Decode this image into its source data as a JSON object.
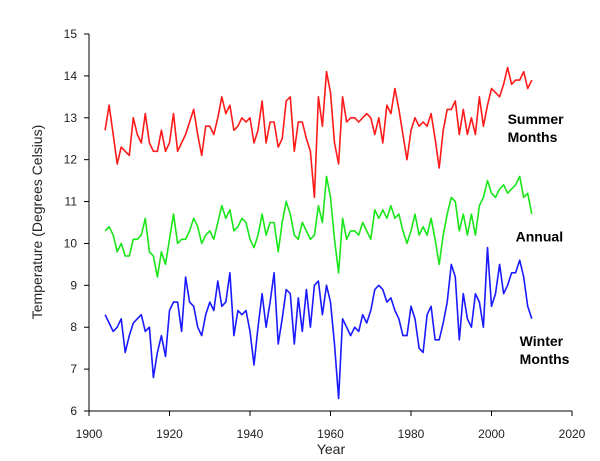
{
  "chart_data": {
    "type": "line",
    "title": "",
    "xlabel": "Year",
    "ylabel": "Temperature (Degrees Celsius)",
    "xlim": [
      1900,
      2020
    ],
    "ylim": [
      6,
      15
    ],
    "xticks": [
      "1900",
      "1920",
      "1940",
      "1960",
      "1980",
      "2000",
      "2020"
    ],
    "yticks": [
      "6",
      "7",
      "8",
      "9",
      "10",
      "11",
      "12",
      "13",
      "14",
      "15"
    ],
    "grid": false,
    "legend": "none",
    "x": [
      1904,
      1905,
      1906,
      1907,
      1908,
      1909,
      1910,
      1911,
      1912,
      1913,
      1914,
      1915,
      1916,
      1917,
      1918,
      1919,
      1920,
      1921,
      1922,
      1923,
      1924,
      1925,
      1926,
      1927,
      1928,
      1929,
      1930,
      1931,
      1932,
      1933,
      1934,
      1935,
      1936,
      1937,
      1938,
      1939,
      1940,
      1941,
      1942,
      1943,
      1944,
      1945,
      1946,
      1947,
      1948,
      1949,
      1950,
      1951,
      1952,
      1953,
      1954,
      1955,
      1956,
      1957,
      1958,
      1959,
      1960,
      1961,
      1962,
      1963,
      1964,
      1965,
      1966,
      1967,
      1968,
      1969,
      1970,
      1971,
      1972,
      1973,
      1974,
      1975,
      1976,
      1977,
      1978,
      1979,
      1980,
      1981,
      1982,
      1983,
      1984,
      1985,
      1986,
      1987,
      1988,
      1989,
      1990,
      1991,
      1992,
      1993,
      1994,
      1995,
      1996,
      1997,
      1998,
      1999,
      2000,
      2001,
      2002,
      2003,
      2004,
      2005,
      2006,
      2007,
      2008,
      2009,
      2010
    ],
    "series": [
      {
        "name": "Summer Months",
        "color": "#ff1a1a",
        "values": [
          12.7,
          13.3,
          12.6,
          11.9,
          12.3,
          12.2,
          12.1,
          13.0,
          12.6,
          12.4,
          13.1,
          12.4,
          12.2,
          12.2,
          12.7,
          12.2,
          12.4,
          13.1,
          12.2,
          12.4,
          12.6,
          12.9,
          13.2,
          12.6,
          12.1,
          12.8,
          12.8,
          12.6,
          13.0,
          13.5,
          13.1,
          13.3,
          12.7,
          12.8,
          13.0,
          12.9,
          13.0,
          12.4,
          12.7,
          13.4,
          12.4,
          12.9,
          12.9,
          12.3,
          12.5,
          13.4,
          13.5,
          12.2,
          12.9,
          12.9,
          12.5,
          12.2,
          11.1,
          13.5,
          12.8,
          14.1,
          13.6,
          12.4,
          11.9,
          13.5,
          12.9,
          13.0,
          13.0,
          12.9,
          13.0,
          13.1,
          13.0,
          12.6,
          13.0,
          12.4,
          13.3,
          13.1,
          13.7,
          13.2,
          12.6,
          12.0,
          12.7,
          13.0,
          12.8,
          12.9,
          12.8,
          13.1,
          12.5,
          11.8,
          12.7,
          13.2,
          13.2,
          13.4,
          12.6,
          13.2,
          12.6,
          13.0,
          12.6,
          13.5,
          12.8,
          13.3,
          13.7,
          13.6,
          13.5,
          13.8,
          14.2,
          13.8,
          13.9,
          13.9,
          14.1,
          13.7,
          13.9
        ]
      },
      {
        "name": "Annual",
        "color": "#19e619",
        "values": [
          10.3,
          10.4,
          10.2,
          9.8,
          10.0,
          9.7,
          9.7,
          10.1,
          10.1,
          10.2,
          10.6,
          9.8,
          9.7,
          9.2,
          9.8,
          9.5,
          10.1,
          10.7,
          10.0,
          10.1,
          10.1,
          10.3,
          10.6,
          10.4,
          10.0,
          10.2,
          10.3,
          10.1,
          10.5,
          10.9,
          10.6,
          10.8,
          10.3,
          10.4,
          10.6,
          10.5,
          10.1,
          9.9,
          10.2,
          10.7,
          10.2,
          10.5,
          10.5,
          9.8,
          10.5,
          11.0,
          10.7,
          10.2,
          10.1,
          10.5,
          10.3,
          10.1,
          10.2,
          10.9,
          10.5,
          11.6,
          11.1,
          10.1,
          9.3,
          10.6,
          10.1,
          10.3,
          10.3,
          10.2,
          10.5,
          10.3,
          10.1,
          10.8,
          10.6,
          10.8,
          10.6,
          10.9,
          10.6,
          10.7,
          10.3,
          10.0,
          10.3,
          10.7,
          10.2,
          10.4,
          10.2,
          10.6,
          10.1,
          9.5,
          10.2,
          10.7,
          11.1,
          11.0,
          10.3,
          10.7,
          10.2,
          10.7,
          10.2,
          10.9,
          11.1,
          11.5,
          11.2,
          11.1,
          11.3,
          11.4,
          11.2,
          11.3,
          11.4,
          11.6,
          11.1,
          11.2,
          10.7
        ]
      },
      {
        "name": "Winter Months",
        "color": "#1a1aff",
        "values": [
          8.3,
          8.1,
          7.9,
          8.0,
          8.2,
          7.4,
          7.8,
          8.1,
          8.2,
          8.3,
          7.9,
          8.0,
          6.8,
          7.4,
          7.8,
          7.3,
          8.4,
          8.6,
          8.6,
          7.9,
          9.2,
          8.6,
          8.5,
          8.0,
          7.8,
          8.3,
          8.6,
          8.4,
          9.1,
          8.5,
          8.6,
          9.3,
          7.8,
          8.4,
          8.3,
          8.4,
          7.9,
          7.1,
          8.0,
          8.8,
          8.0,
          8.6,
          9.3,
          7.6,
          8.2,
          8.9,
          8.8,
          7.6,
          8.7,
          7.9,
          8.9,
          8.0,
          9.0,
          9.1,
          8.3,
          9.0,
          8.6,
          7.6,
          6.3,
          8.2,
          8.0,
          7.8,
          8.0,
          7.9,
          8.3,
          8.1,
          8.4,
          8.9,
          9.0,
          8.9,
          8.6,
          8.7,
          8.4,
          8.2,
          7.8,
          7.8,
          8.5,
          8.2,
          7.5,
          7.4,
          8.3,
          8.5,
          7.7,
          7.7,
          8.1,
          8.6,
          9.5,
          9.2,
          7.7,
          8.8,
          8.2,
          8.0,
          8.8,
          8.6,
          8.0,
          9.9,
          8.5,
          8.8,
          9.5,
          8.8,
          9.0,
          9.3,
          9.3,
          9.6,
          9.2,
          8.5,
          8.2
        ]
      }
    ],
    "series_labels": [
      {
        "lines": [
          "Summer",
          "Months"
        ],
        "anchor_x": 2004,
        "anchor_y": 12.85
      },
      {
        "lines": [
          "Annual"
        ],
        "anchor_x": 2006,
        "anchor_y": 10.05
      },
      {
        "lines": [
          "Winter",
          "Months"
        ],
        "anchor_x": 2007,
        "anchor_y": 7.55
      }
    ]
  }
}
